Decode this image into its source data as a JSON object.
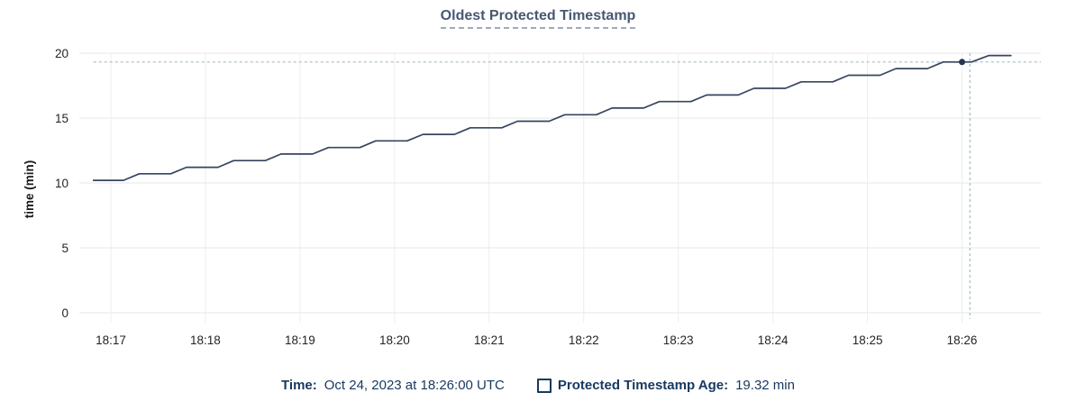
{
  "header": {
    "title": "Oldest Protected Timestamp"
  },
  "legend": {
    "time_label": "Time:",
    "time_value": "Oct 24, 2023 at 18:26:00 UTC",
    "series_label": "Protected Timestamp Age:",
    "series_value": "19.32 min"
  },
  "colors": {
    "title": "#475872",
    "title_underline": "#9FAABC",
    "series_line": "#36455F",
    "hover_dot": "#24374F",
    "crosshair": "#A3BCC6",
    "grid_horizontal": "#E7E7E7",
    "grid_vertical": "#EDEDED",
    "axis_tick_text": "#242424",
    "axis_label_text": "#1A1A1A",
    "legend_text": "#17395F"
  },
  "chart_data": {
    "type": "line",
    "title": "Oldest Protected Timestamp",
    "xlabel": "",
    "ylabel": "time (min)",
    "x_tick_labels": [
      "18:17",
      "18:18",
      "18:19",
      "18:20",
      "18:21",
      "18:22",
      "18:23",
      "18:24",
      "18:25",
      "18:26"
    ],
    "x_tick_seconds": [
      0,
      60,
      120,
      180,
      240,
      300,
      360,
      420,
      480,
      540
    ],
    "xlim_seconds": [
      -20,
      590
    ],
    "y_ticks": [
      0,
      5,
      10,
      15,
      20
    ],
    "ylim": [
      0,
      20
    ],
    "grid": true,
    "legend_position": "bottom",
    "series": [
      {
        "name": "Protected Timestamp Age",
        "unit": "min",
        "points_t_v": [
          [
            -11,
            10.2
          ],
          [
            8,
            10.2
          ],
          [
            18,
            10.71
          ],
          [
            38,
            10.71
          ],
          [
            48,
            11.21
          ],
          [
            68,
            11.21
          ],
          [
            78,
            11.72
          ],
          [
            98,
            11.72
          ],
          [
            108,
            12.23
          ],
          [
            128,
            12.23
          ],
          [
            138,
            12.73
          ],
          [
            158,
            12.73
          ],
          [
            168,
            13.24
          ],
          [
            188,
            13.24
          ],
          [
            198,
            13.74
          ],
          [
            218,
            13.74
          ],
          [
            228,
            14.25
          ],
          [
            248,
            14.25
          ],
          [
            258,
            14.76
          ],
          [
            278,
            14.76
          ],
          [
            288,
            15.26
          ],
          [
            308,
            15.26
          ],
          [
            318,
            15.77
          ],
          [
            338,
            15.77
          ],
          [
            348,
            16.27
          ],
          [
            368,
            16.27
          ],
          [
            378,
            16.78
          ],
          [
            398,
            16.78
          ],
          [
            408,
            17.29
          ],
          [
            428,
            17.29
          ],
          [
            438,
            17.79
          ],
          [
            458,
            17.79
          ],
          [
            468,
            18.3
          ],
          [
            488,
            18.3
          ],
          [
            498,
            18.81
          ],
          [
            518,
            18.81
          ],
          [
            528,
            19.32
          ],
          [
            546,
            19.32
          ],
          [
            557,
            19.82
          ],
          [
            571,
            19.82
          ]
        ]
      }
    ],
    "hover": {
      "time": "Oct 24, 2023 at 18:26:00 UTC",
      "x_tick": "18:26",
      "value": 19.32,
      "point_t": 540,
      "point_v": 19.32,
      "crosshair_t": 545
    }
  }
}
